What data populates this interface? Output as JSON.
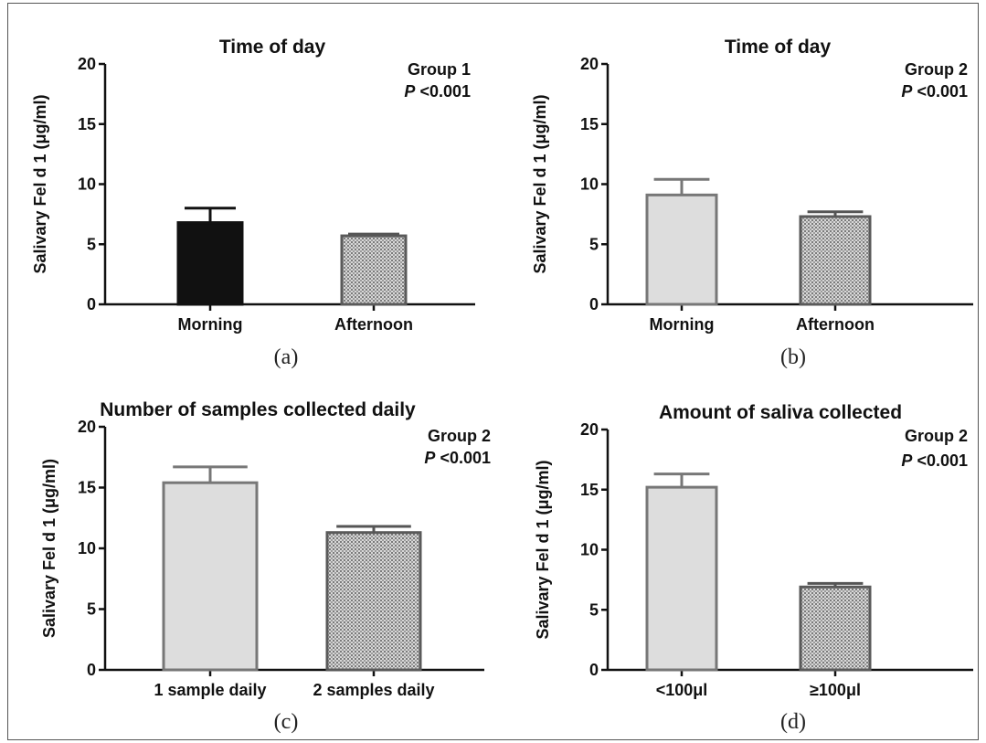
{
  "chart_data": [
    {
      "type": "bar",
      "title": "Time of day",
      "ylabel": "Salivary Fel d 1 (μg/ml)",
      "ylim": [
        0,
        20
      ],
      "yticks": [
        "0",
        "5",
        "10",
        "15",
        "20"
      ],
      "categories": [
        "Morning",
        "Afternoon"
      ],
      "values": [
        6.8,
        5.7
      ],
      "errors": [
        1.2,
        0.15
      ],
      "group": "Group 1",
      "p_prefix": "P",
      "p_value": "<0.001",
      "panel_label": "(a)",
      "colors": [
        "#111111",
        "#d0d0d0"
      ],
      "patterns": [
        "solid",
        "dots"
      ]
    },
    {
      "type": "bar",
      "title": "Time of day",
      "ylabel": "Salivary Fel d 1 (μg/ml)",
      "ylim": [
        0,
        20
      ],
      "yticks": [
        "0",
        "5",
        "10",
        "15",
        "20"
      ],
      "categories": [
        "Morning",
        "Afternoon"
      ],
      "values": [
        9.1,
        7.3
      ],
      "errors": [
        1.3,
        0.4
      ],
      "group": "Group 2",
      "p_prefix": "P",
      "p_value": "<0.001",
      "panel_label": "(b)",
      "colors": [
        "#dddddd",
        "#d0d0d0"
      ],
      "patterns": [
        "light",
        "dots"
      ]
    },
    {
      "type": "bar",
      "title": "Number of samples collected daily",
      "ylabel": "Salivary Fel d 1 (μg/ml)",
      "ylim": [
        0,
        20
      ],
      "yticks": [
        "0",
        "5",
        "10",
        "15",
        "20"
      ],
      "categories": [
        "1 sample daily",
        "2 samples daily"
      ],
      "values": [
        15.4,
        11.3
      ],
      "errors": [
        1.3,
        0.5
      ],
      "group": "Group 2",
      "p_prefix": "P",
      "p_value": "<0.001",
      "panel_label": "(c)",
      "colors": [
        "#dddddd",
        "#d0d0d0"
      ],
      "patterns": [
        "light",
        "dots"
      ]
    },
    {
      "type": "bar",
      "title": "Amount of saliva collected",
      "ylabel": "Salivary Fel d 1 (μg/ml)",
      "ylim": [
        0,
        20
      ],
      "yticks": [
        "0",
        "5",
        "10",
        "15",
        "20"
      ],
      "categories": [
        "<100μl",
        "≥100μl"
      ],
      "values": [
        15.2,
        6.9
      ],
      "errors": [
        1.1,
        0.3
      ],
      "group": "Group 2",
      "p_prefix": "P",
      "p_value": "<0.001",
      "panel_label": "(d)",
      "colors": [
        "#dddddd",
        "#d0d0d0"
      ],
      "patterns": [
        "light",
        "dots"
      ]
    }
  ]
}
